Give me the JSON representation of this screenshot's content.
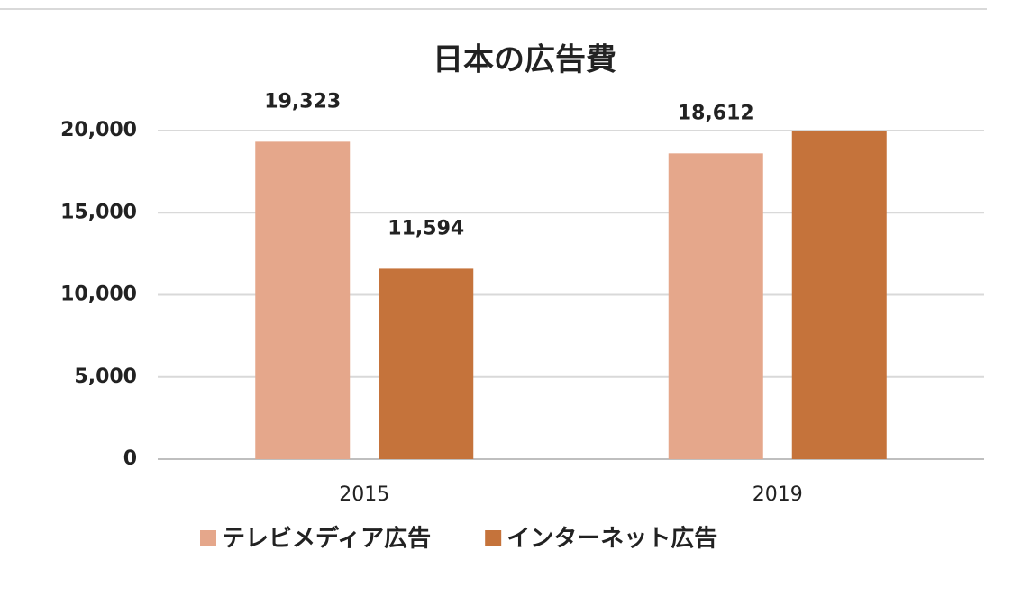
{
  "chart_data": {
    "type": "bar",
    "title": "日本の広告費",
    "categories": [
      "2015",
      "2019"
    ],
    "series": [
      {
        "name": "テレビメディア広告",
        "color": "#e5a78b",
        "values": [
          19323,
          18612
        ],
        "value_labels": [
          "19,323",
          "18,612"
        ]
      },
      {
        "name": "インターネット広告",
        "color": "#c5733b",
        "values": [
          11594,
          20000
        ],
        "value_labels": [
          "11,594",
          null
        ]
      }
    ],
    "ylim": [
      0,
      20000
    ],
    "yticks": [
      0,
      {
        "value": 5000,
        "label": "5,000"
      },
      {
        "value": 10000,
        "label": "10,000"
      },
      {
        "value": 15000,
        "label": "15,000"
      },
      {
        "value": 20000,
        "label": "20,000"
      }
    ],
    "grid": true,
    "legend": "bottom"
  }
}
